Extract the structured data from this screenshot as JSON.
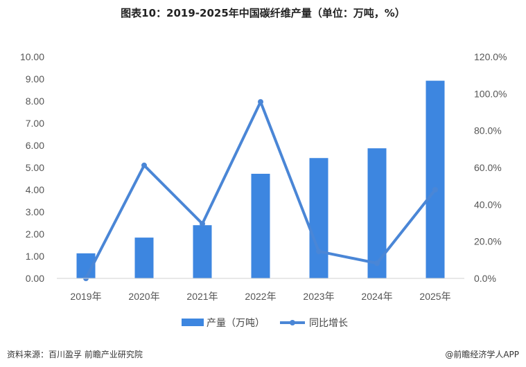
{
  "title": "图表10：2019-2025年中国碳纤维产量（单位：万吨，%）",
  "footer": {
    "source": "资料来源：百川盈孚  前瞻产业研究院",
    "brand": "@前瞻经济学人APP"
  },
  "colors": {
    "bar": "#3d86e0",
    "line": "#4a86d6"
  },
  "chart_data": {
    "type": "bar",
    "categories": [
      "2019年",
      "2020年",
      "2021年",
      "2022年",
      "2023年",
      "2024年",
      "2025年"
    ],
    "series": [
      {
        "name": "产量（万吨）",
        "type": "bar",
        "axis": "left",
        "values": [
          1.13,
          1.84,
          2.4,
          4.72,
          5.43,
          5.87,
          8.92
        ]
      },
      {
        "name": "同比增长",
        "type": "line",
        "axis": "right",
        "values": [
          0.0,
          61.2,
          29.6,
          95.6,
          14.6,
          8.2,
          48.0
        ]
      }
    ],
    "y_left": {
      "min": 0,
      "max": 10,
      "ticks": [
        "0.00",
        "1.00",
        "2.00",
        "3.00",
        "4.00",
        "5.00",
        "6.00",
        "7.00",
        "8.00",
        "9.00",
        "10.00"
      ]
    },
    "y_right": {
      "min": 0,
      "max": 120,
      "ticks": [
        "0.0%",
        "20.0%",
        "40.0%",
        "60.0%",
        "80.0%",
        "100.0%",
        "120.0%"
      ]
    },
    "legend_position": "bottom-center",
    "grid": false
  }
}
